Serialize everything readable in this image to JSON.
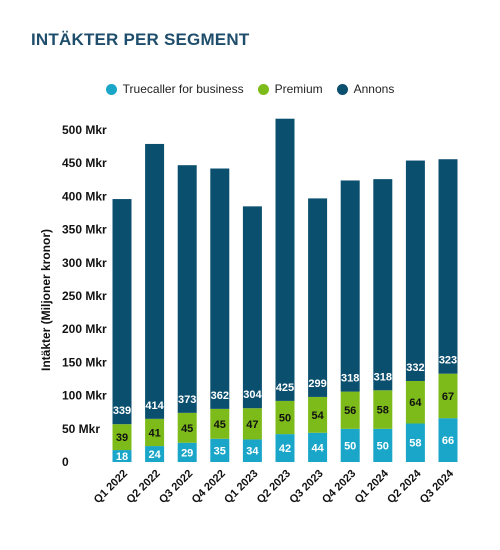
{
  "title": "INTÄKTER PER SEGMENT",
  "legend": [
    {
      "label": "Truecaller for business",
      "color": "#1aa6c8"
    },
    {
      "label": "Premium",
      "color": "#7dbb1b"
    },
    {
      "label": "Annons",
      "color": "#0b4f6e"
    }
  ],
  "chart_data": {
    "type": "bar",
    "stacked": true,
    "categories": [
      "Q1 2022",
      "Q2 2022",
      "Q3 2022",
      "Q4 2022",
      "Q1 2023",
      "Q2 2023",
      "Q3 2023",
      "Q4 2023",
      "Q1 2024",
      "Q2 2024",
      "Q3 2024"
    ],
    "series": [
      {
        "name": "Truecaller for business",
        "color": "#1aa6c8",
        "values": [
          18,
          24,
          29,
          35,
          34,
          42,
          44,
          50,
          50,
          58,
          66
        ]
      },
      {
        "name": "Premium",
        "color": "#7dbb1b",
        "values": [
          39,
          41,
          45,
          45,
          47,
          50,
          54,
          56,
          58,
          64,
          67
        ]
      },
      {
        "name": "Annons",
        "color": "#0b4f6e",
        "values": [
          339,
          414,
          373,
          362,
          304,
          425,
          299,
          318,
          318,
          332,
          323
        ]
      }
    ],
    "ylabel": "Intäkter (Miljoner kronor)",
    "yticks": [
      "0",
      "50 Mkr",
      "100 Mkr",
      "150 Mkr",
      "200 Mkr",
      "250 Mkr",
      "300 Mkr",
      "350 Mkr",
      "400 Mkr",
      "450 Mkr",
      "500 Mkr"
    ],
    "ylim": [
      0,
      500
    ],
    "legend_position": "top",
    "grid": false
  }
}
